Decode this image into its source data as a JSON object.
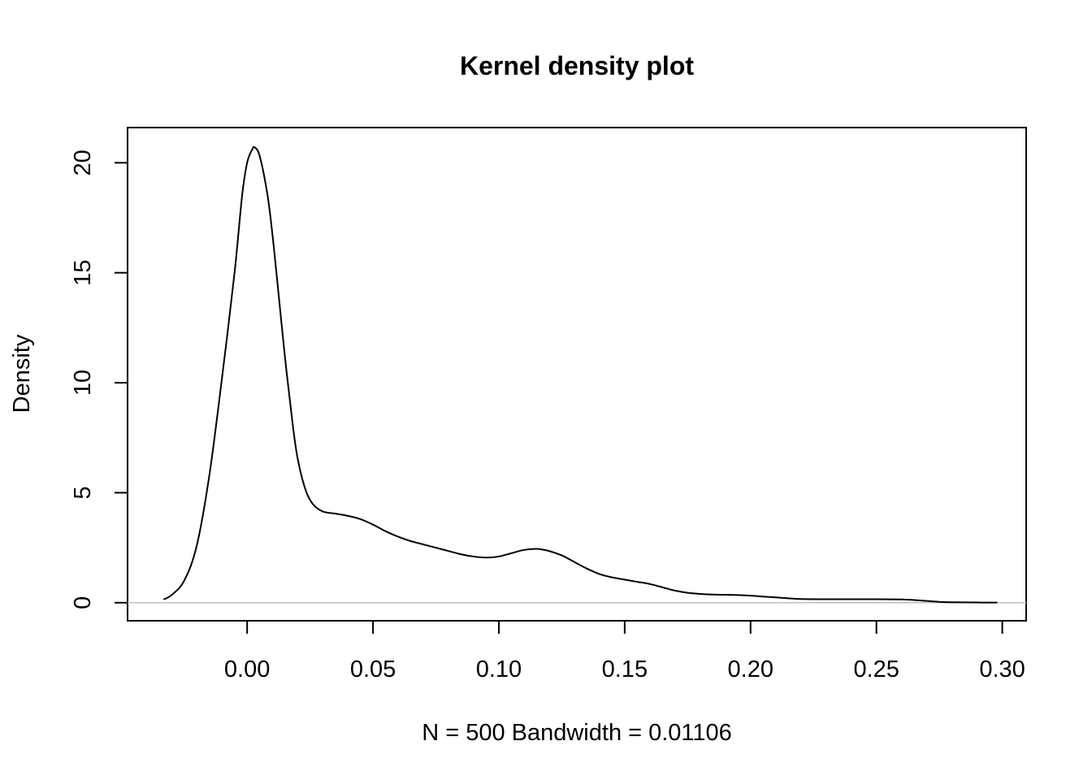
{
  "chart_data": {
    "type": "line",
    "title": "Kernel density plot",
    "xlabel": "N = 500   Bandwidth = 0.01106",
    "ylabel": "Density",
    "xlim": [
      -0.0475,
      0.3095
    ],
    "ylim": [
      -0.82,
      21.6
    ],
    "x_ticks": [
      0.0,
      0.05,
      0.1,
      0.15,
      0.2,
      0.25,
      0.3
    ],
    "x_tick_labels": [
      "0.00",
      "0.05",
      "0.10",
      "0.15",
      "0.20",
      "0.25",
      "0.30"
    ],
    "y_ticks": [
      0,
      5,
      10,
      15,
      20
    ],
    "y_tick_labels": [
      "0",
      "5",
      "10",
      "15",
      "20"
    ],
    "baseline": 0,
    "grid": false,
    "line_color": "#000000",
    "baseline_color": "#bebebe",
    "series": [
      {
        "x": [
          -0.0332,
          -0.03,
          -0.025,
          -0.02,
          -0.015,
          -0.01,
          -0.005,
          -0.002,
          0.0,
          0.002,
          0.003,
          0.005,
          0.008,
          0.01,
          0.012,
          0.015,
          0.018,
          0.02,
          0.023,
          0.026,
          0.03,
          0.035,
          0.04,
          0.045,
          0.05,
          0.055,
          0.06,
          0.065,
          0.07,
          0.075,
          0.08,
          0.085,
          0.09,
          0.095,
          0.1,
          0.105,
          0.11,
          0.115,
          0.118,
          0.12,
          0.125,
          0.13,
          0.135,
          0.14,
          0.145,
          0.15,
          0.155,
          0.16,
          0.165,
          0.17,
          0.175,
          0.18,
          0.185,
          0.19,
          0.195,
          0.2,
          0.205,
          0.21,
          0.215,
          0.22,
          0.23,
          0.24,
          0.25,
          0.26,
          0.265,
          0.27,
          0.275,
          0.28,
          0.29,
          0.298
        ],
        "y": [
          0.15,
          0.35,
          1.0,
          2.6,
          5.8,
          10.2,
          15.0,
          18.5,
          20.0,
          20.6,
          20.7,
          20.3,
          18.6,
          16.8,
          14.6,
          11.2,
          8.2,
          6.6,
          5.2,
          4.5,
          4.15,
          4.05,
          3.95,
          3.8,
          3.55,
          3.25,
          3.0,
          2.8,
          2.65,
          2.5,
          2.35,
          2.2,
          2.1,
          2.05,
          2.1,
          2.25,
          2.4,
          2.45,
          2.4,
          2.35,
          2.15,
          1.85,
          1.55,
          1.3,
          1.15,
          1.05,
          0.95,
          0.85,
          0.7,
          0.55,
          0.45,
          0.4,
          0.37,
          0.36,
          0.35,
          0.32,
          0.28,
          0.24,
          0.2,
          0.17,
          0.16,
          0.16,
          0.16,
          0.15,
          0.12,
          0.08,
          0.04,
          0.02,
          0.01,
          0.005
        ]
      }
    ]
  }
}
